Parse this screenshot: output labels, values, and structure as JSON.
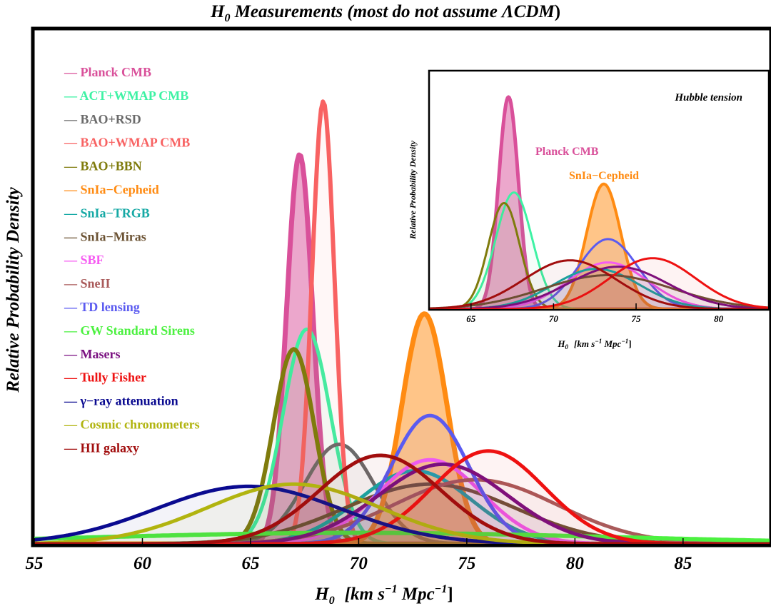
{
  "chart_data": {
    "type": "line",
    "title_prefix": "H",
    "title_sub": "0",
    "title_rest": " Measurements (",
    "title_italic": "most do not assume ΛCDM",
    "title_end": ")",
    "xlabel_main": "H",
    "xlabel_sub": "0",
    "xlabel_units": "[km s",
    "xlabel_exp1": "−1",
    "xlabel_mpc": " Mpc",
    "xlabel_exp2": "−1",
    "xlabel_close": "]",
    "ylabel": "Relative Probability Density",
    "xlim": [
      55,
      89
    ],
    "xticks": [
      "55",
      "60",
      "65",
      "70",
      "75",
      "80",
      "85"
    ],
    "xtick_values": [
      55,
      60,
      65,
      70,
      75,
      80,
      85
    ],
    "legend_position": "top-left",
    "legend_marker": "—",
    "series": [
      {
        "name": "Planck CMB",
        "mean": 67.27,
        "sigma": 0.6,
        "peak": 0.88,
        "color": "#d9509a",
        "width": 7,
        "fill": true
      },
      {
        "name": "ACT+WMAP CMB",
        "mean": 67.6,
        "sigma": 1.1,
        "peak": 0.485,
        "color": "#3ef2a4",
        "width": 5,
        "fill": false
      },
      {
        "name": "BAO+RSD",
        "mean": 69.1,
        "sigma": 1.6,
        "peak": 0.225,
        "color": "#6a6a6a",
        "width": 5,
        "fill": false
      },
      {
        "name": "BAO+WMAP CMB",
        "mean": 68.36,
        "sigma": 0.52,
        "peak": 1.0,
        "color": "#f86262",
        "width": 6,
        "fill": false
      },
      {
        "name": "BAO+BBN",
        "mean": 67.0,
        "sigma": 0.95,
        "peak": 0.44,
        "color": "#7f7b0c",
        "width": 6,
        "fill": false
      },
      {
        "name": "SnIa−Cepheid",
        "mean": 73.04,
        "sigma": 1.04,
        "peak": 0.52,
        "color": "#ff8b12",
        "width": 7,
        "fill": true
      },
      {
        "name": "SnIa−TRGB",
        "mean": 72.6,
        "sigma": 2.6,
        "peak": 0.165,
        "color": "#16a9a5",
        "width": 5,
        "fill": false
      },
      {
        "name": "SnIa−Miras",
        "mean": 73.3,
        "sigma": 3.9,
        "peak": 0.135,
        "color": "#6b5233",
        "width": 5,
        "fill": false
      },
      {
        "name": "SBF",
        "mean": 73.3,
        "sigma": 2.4,
        "peak": 0.19,
        "color": "#f65bf2",
        "width": 5,
        "fill": false
      },
      {
        "name": "SneII",
        "mean": 75.4,
        "sigma": 3.8,
        "peak": 0.145,
        "color": "#a95a5a",
        "width": 5,
        "fill": false
      },
      {
        "name": "TD lensing",
        "mean": 73.3,
        "sigma": 1.8,
        "peak": 0.29,
        "color": "#5b5bf0",
        "width": 5,
        "fill": false
      },
      {
        "name": "GW Standard Sirens",
        "mean": 70.0,
        "sigma": 12.0,
        "peak": 0.025,
        "color": "#4cf140",
        "width": 6,
        "fill": false
      },
      {
        "name": "Masers",
        "mean": 73.9,
        "sigma": 3.0,
        "peak": 0.18,
        "color": "#7a0f80",
        "width": 5,
        "fill": false
      },
      {
        "name": "Tully Fisher",
        "mean": 76.0,
        "sigma": 2.6,
        "peak": 0.21,
        "color": "#ee1111",
        "width": 5,
        "fill": false
      },
      {
        "name": "γ−ray attenuation",
        "mean": 64.9,
        "sigma": 4.3,
        "peak": 0.13,
        "color": "#0a0a90",
        "width": 5,
        "fill": false
      },
      {
        "name": "Cosmic chronometers",
        "mean": 67.0,
        "sigma": 4.0,
        "peak": 0.135,
        "color": "#b1b410",
        "width": 5,
        "fill": false
      },
      {
        "name": "HII galaxy",
        "mean": 71.0,
        "sigma": 2.8,
        "peak": 0.2,
        "color": "#a10d0d",
        "width": 5,
        "fill": false
      }
    ],
    "inset": {
      "title": "Hubble tension",
      "xlabel_main": "H",
      "xlabel_sub": "0",
      "xlabel_units": "[km s",
      "xlabel_exp1": "−1",
      "xlabel_mpc": " Mpc",
      "xlabel_exp2": "−1",
      "xlabel_close": "]",
      "ylabel": "Relative Probability Density",
      "xlim": [
        62.5,
        83
      ],
      "xticks": [
        "65",
        "70",
        "75",
        "80"
      ],
      "xtick_values": [
        65,
        70,
        75,
        80
      ],
      "label_planck": "Planck CMB",
      "label_cepheid": "SnIa−Cepheid",
      "series": [
        {
          "name": "Planck CMB",
          "mean": 67.27,
          "sigma": 0.6,
          "peak": 1.0,
          "color": "#d9509a",
          "width": 5,
          "fill": true
        },
        {
          "name": "ACT+WMAP CMB",
          "mean": 67.6,
          "sigma": 1.1,
          "peak": 0.55,
          "color": "#3ef2a4",
          "width": 3,
          "fill": false
        },
        {
          "name": "BAO+BBN",
          "mean": 67.0,
          "sigma": 0.95,
          "peak": 0.5,
          "color": "#7f7b0c",
          "width": 3,
          "fill": false
        },
        {
          "name": "SnIa−Cepheid",
          "mean": 73.04,
          "sigma": 1.04,
          "peak": 0.59,
          "color": "#ff8b12",
          "width": 4,
          "fill": true
        },
        {
          "name": "TD lensing",
          "mean": 73.3,
          "sigma": 1.8,
          "peak": 0.33,
          "color": "#5b5bf0",
          "width": 3,
          "fill": false
        },
        {
          "name": "SBF",
          "mean": 73.3,
          "sigma": 2.4,
          "peak": 0.22,
          "color": "#f65bf2",
          "width": 3,
          "fill": false
        },
        {
          "name": "SnIa−TRGB",
          "mean": 72.6,
          "sigma": 2.6,
          "peak": 0.19,
          "color": "#16a9a5",
          "width": 3,
          "fill": false
        },
        {
          "name": "SnIa−Miras",
          "mean": 73.3,
          "sigma": 3.9,
          "peak": 0.16,
          "color": "#6b5233",
          "width": 3,
          "fill": false
        },
        {
          "name": "Masers",
          "mean": 73.9,
          "sigma": 3.0,
          "peak": 0.2,
          "color": "#7a0f80",
          "width": 3,
          "fill": false
        },
        {
          "name": "Tully Fisher",
          "mean": 76.0,
          "sigma": 2.6,
          "peak": 0.24,
          "color": "#ee1111",
          "width": 3,
          "fill": false
        },
        {
          "name": "HII galaxy",
          "mean": 71.0,
          "sigma": 2.8,
          "peak": 0.23,
          "color": "#a10d0d",
          "width": 3,
          "fill": false
        }
      ]
    }
  }
}
